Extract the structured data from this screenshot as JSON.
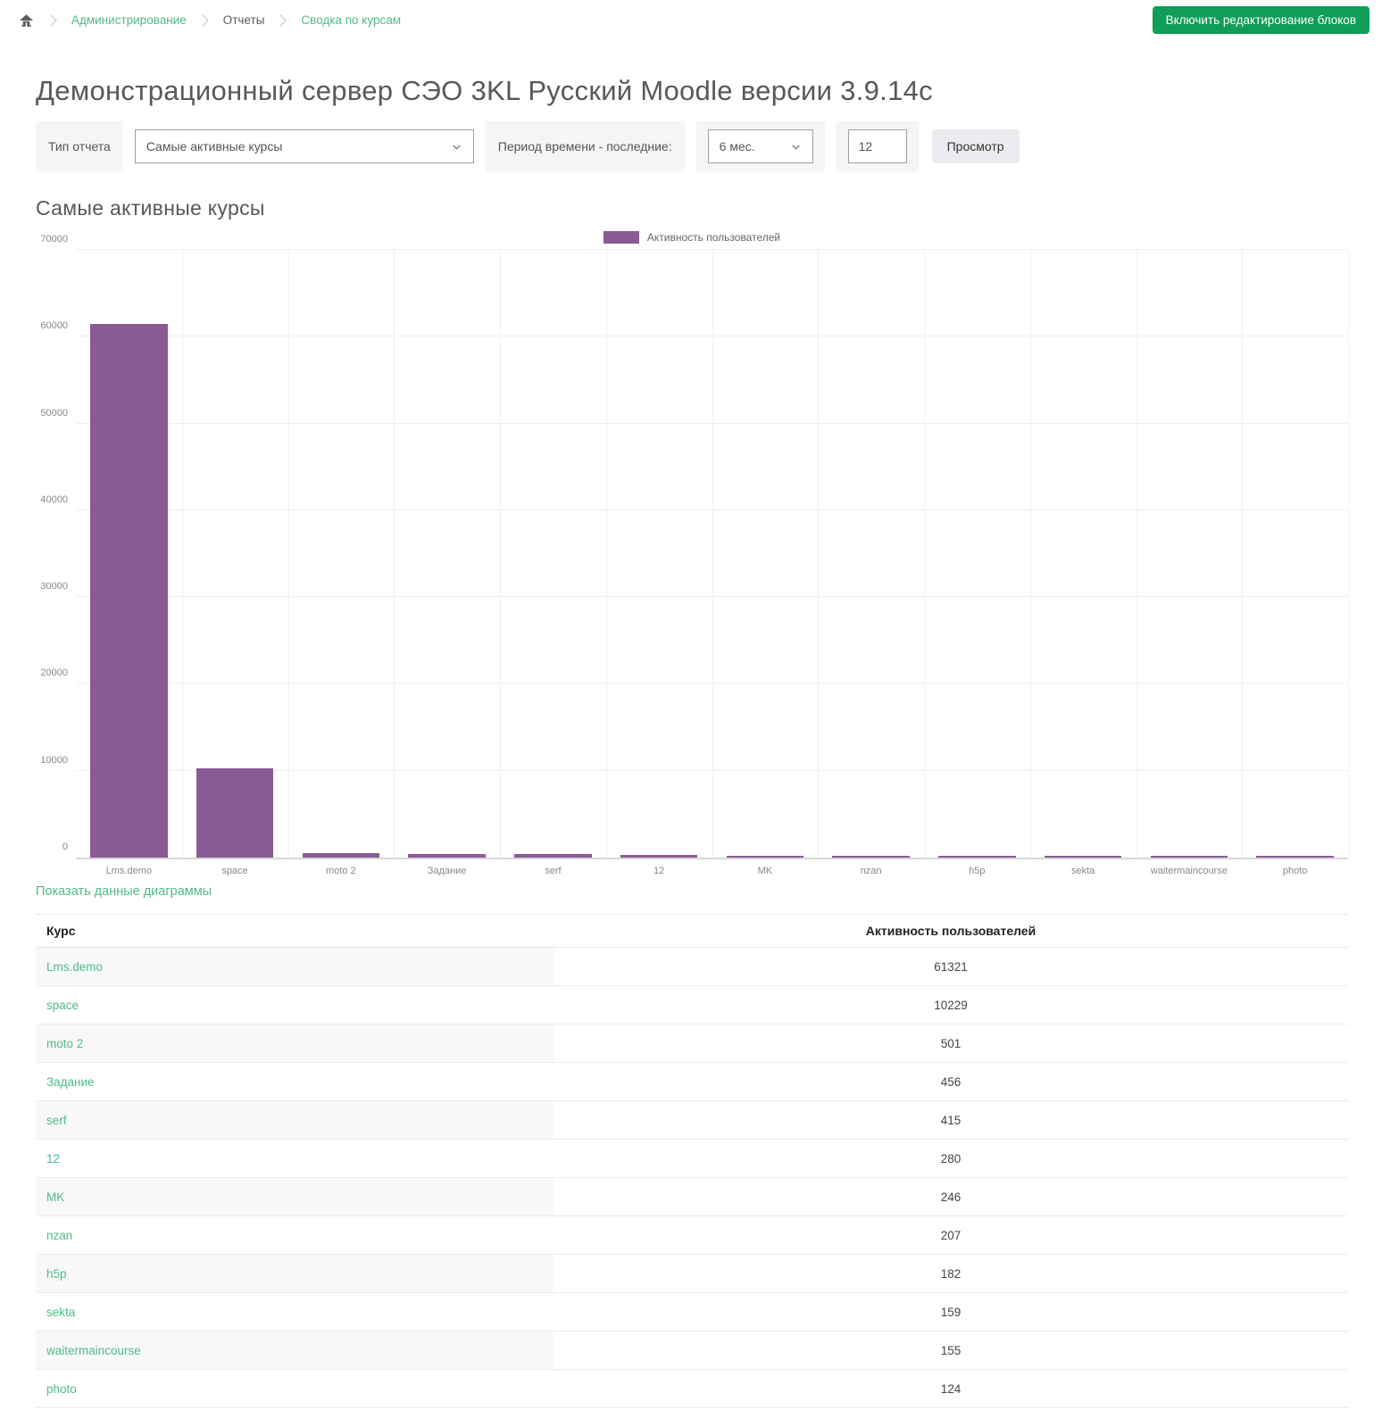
{
  "colors": {
    "accent_green": "#0f9d58",
    "link_green": "#4fbb87",
    "bar_purple": "#8a5a96",
    "heading_gray": "#58585b"
  },
  "breadcrumb": {
    "items": [
      {
        "label": "Администрирование",
        "link": true
      },
      {
        "label": "Отчеты",
        "link": false
      },
      {
        "label": "Сводка по курсам",
        "link": true
      }
    ]
  },
  "header_button": "Включить редактирование блоков",
  "page_title": "Демонстрационный сервер СЭО 3KL Русский Moodle версии 3.9.14с",
  "filters": {
    "report_type_label": "Тип отчета",
    "report_type_value": "Самые активные курсы",
    "period_label": "Период времени - последние:",
    "period_value": "6 мес.",
    "count_value": "12",
    "submit_label": "Просмотр"
  },
  "section_title": "Самые активные курсы",
  "chart_data": {
    "type": "bar",
    "title": "Самые активные курсы",
    "legend": "Активность пользователей",
    "legend_position": "top",
    "grid": true,
    "xlabel": "",
    "ylabel": "",
    "ylim": [
      0,
      70000
    ],
    "yticks": [
      0,
      10000,
      20000,
      30000,
      40000,
      50000,
      60000,
      70000
    ],
    "categories": [
      "Lms.demo",
      "space",
      "moto 2",
      "Задание",
      "serf",
      "12",
      "MK",
      "nzan",
      "h5p",
      "sekta",
      "waitermaincourse",
      "photo"
    ],
    "values": [
      61321,
      10229,
      501,
      456,
      415,
      280,
      246,
      207,
      182,
      159,
      155,
      124
    ]
  },
  "show_data_link": "Показать данные диаграммы",
  "table": {
    "columns": [
      "Курс",
      "Активность пользователей"
    ],
    "rows": [
      {
        "course": "Lms.demo",
        "value": "61321"
      },
      {
        "course": "space",
        "value": "10229"
      },
      {
        "course": "moto 2",
        "value": "501"
      },
      {
        "course": "Задание",
        "value": "456"
      },
      {
        "course": "serf",
        "value": "415"
      },
      {
        "course": "12",
        "value": "280"
      },
      {
        "course": "MK",
        "value": "246"
      },
      {
        "course": "nzan",
        "value": "207"
      },
      {
        "course": "h5p",
        "value": "182"
      },
      {
        "course": "sekta",
        "value": "159"
      },
      {
        "course": "waitermaincourse",
        "value": "155"
      },
      {
        "course": "photo",
        "value": "124"
      }
    ]
  }
}
